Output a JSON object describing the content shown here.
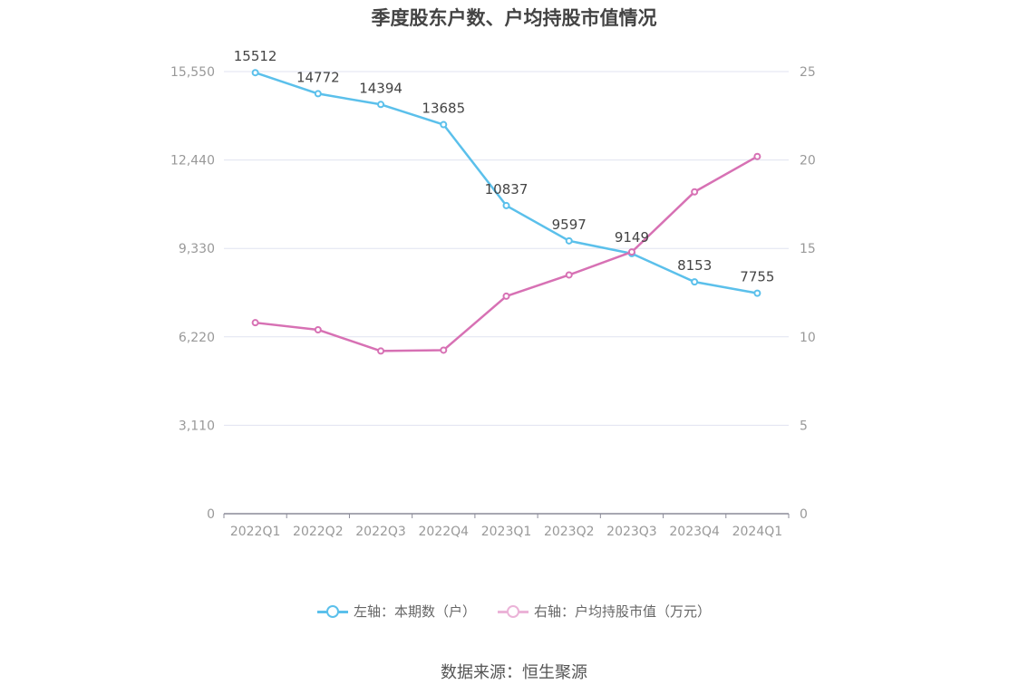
{
  "title": "季度股东户数、户均持股市值情况",
  "source": "数据来源：恒生聚源",
  "colors": {
    "left_series": "#5bc0eb",
    "right_series": "#d771b4",
    "grid": "#e0e3f0",
    "axis": "#8c8c99"
  },
  "legend": [
    {
      "label": "左轴：本期数（户）"
    },
    {
      "label": "右轴：户均持股市值（万元）"
    }
  ],
  "chart_data": {
    "type": "line",
    "title": "季度股东户数、户均持股市值情况",
    "categories": [
      "2022Q1",
      "2022Q2",
      "2022Q3",
      "2022Q4",
      "2023Q1",
      "2023Q2",
      "2023Q3",
      "2023Q4",
      "2024Q1"
    ],
    "y_left": {
      "ticks": [
        "0",
        "3,110",
        "6,220",
        "9,330",
        "12,440",
        "15,550"
      ],
      "min": 0,
      "max": 15550
    },
    "y_right": {
      "ticks": [
        "0",
        "5",
        "10",
        "15",
        "20",
        "25"
      ],
      "min": 0,
      "max": 25
    },
    "series": [
      {
        "name": "左轴：本期数（户）",
        "axis": "left",
        "values": [
          15512,
          14772,
          14394,
          13685,
          10837,
          9597,
          9149,
          8153,
          7755
        ],
        "labels": [
          "15512",
          "14772",
          "14394",
          "13685",
          "10837",
          "9597",
          "9149",
          "8153",
          "7755"
        ]
      },
      {
        "name": "右轴：户均持股市值（万元）",
        "axis": "right",
        "values": [
          10.8,
          10.4,
          9.2,
          9.25,
          12.3,
          13.5,
          14.8,
          18.2,
          20.2
        ]
      }
    ],
    "grid": true,
    "legend_position": "bottom"
  }
}
